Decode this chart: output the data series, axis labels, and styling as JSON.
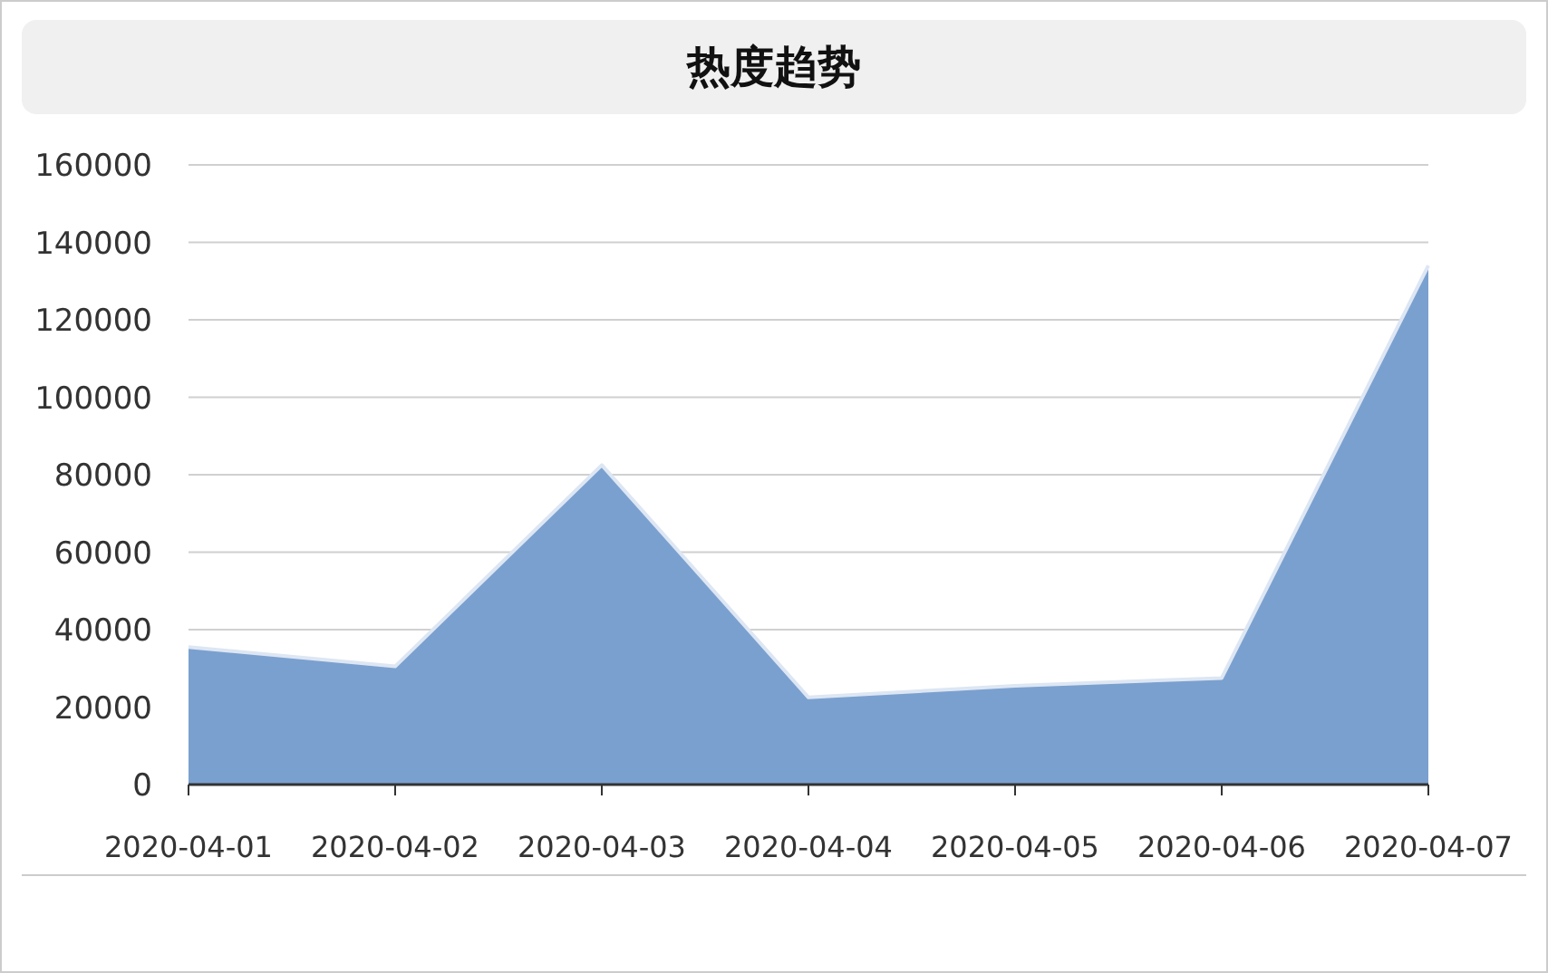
{
  "chart_data": {
    "type": "area",
    "title": "热度趋势",
    "categories": [
      "2020-04-01",
      "2020-04-02",
      "2020-04-03",
      "2020-04-04",
      "2020-04-05",
      "2020-04-06",
      "2020-04-07"
    ],
    "values": [
      35500,
      30500,
      82500,
      22500,
      25500,
      27500,
      134000
    ],
    "color": "#7aa0cf",
    "ylim": [
      0,
      160000
    ],
    "yticks": [
      0,
      20000,
      40000,
      60000,
      80000,
      100000,
      120000,
      140000,
      160000
    ],
    "grid": "y"
  }
}
